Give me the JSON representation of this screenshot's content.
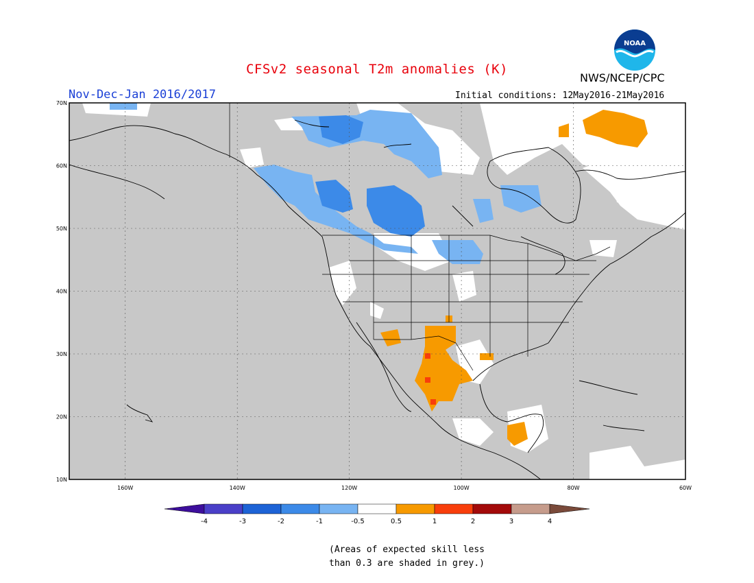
{
  "header": {
    "title": "CFSv2 seasonal T2m anomalies (K)",
    "period": "Nov-Dec-Jan 2016/2017",
    "initial_conditions": "Initial conditions: 12May2016-21May2016",
    "agency": "NWS/NCEP/CPC",
    "logo_text": "NOAA"
  },
  "map": {
    "projection": "lat-lon",
    "lon_range": [
      -170,
      -60
    ],
    "lat_range": [
      10,
      70
    ],
    "lat_labels": [
      "70N",
      "60N",
      "50N",
      "40N",
      "30N",
      "20N",
      "10N"
    ],
    "lon_labels": [
      "160W",
      "140W",
      "120W",
      "100W",
      "80W",
      "60W"
    ],
    "grey_meaning": "skill < 0.3"
  },
  "legend": {
    "labels": [
      "-4",
      "-3",
      "-2",
      "-1",
      "-0.5",
      "0.5",
      "1",
      "2",
      "3",
      "4"
    ],
    "colors": [
      "#3d0e9c",
      "#4a3fc8",
      "#1d63d6",
      "#3c8ae8",
      "#78b4f2",
      "#ffffff",
      "#f79a00",
      "#f83e0b",
      "#a30a0a",
      "#c69c8c",
      "#7a4a3a"
    ]
  },
  "note": {
    "line1": "(Areas of expected skill less",
    "line2": "than 0.3 are shaded in grey.)"
  }
}
